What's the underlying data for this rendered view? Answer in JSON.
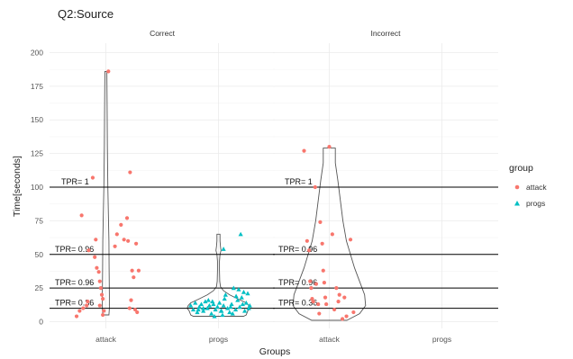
{
  "chart_data": {
    "type": "scatter",
    "title": "Q2:Source",
    "xlabel": "Groups",
    "ylabel": "Time[seconds]",
    "ylim": [
      -5,
      207
    ],
    "yticks": [
      0,
      25,
      50,
      75,
      100,
      125,
      150,
      175,
      200
    ],
    "categories": [
      "attack",
      "progs"
    ],
    "facets": [
      "Correct",
      "Incorrect"
    ],
    "grid": true,
    "legend": {
      "title": "group",
      "position": "right",
      "entries": [
        {
          "label": "attack",
          "color": "#F8766D",
          "shape": "circle"
        },
        {
          "label": "progs",
          "color": "#00BFC4",
          "shape": "triangle"
        }
      ]
    },
    "thresholds": [
      {
        "y": 100,
        "label": "TPR=  1"
      },
      {
        "y": 50,
        "label": "TPR= 0.96"
      },
      {
        "y": 25,
        "label": "TPR= 0.96"
      },
      {
        "y": 10,
        "label": "TPR= 0.36"
      }
    ],
    "series": [
      {
        "name": "attack",
        "facet": "Correct",
        "category": "attack",
        "points": [
          [
            -0.58,
            4
          ],
          [
            -0.52,
            8
          ],
          [
            -0.45,
            10
          ],
          [
            -0.38,
            12
          ],
          [
            -0.36,
            15
          ],
          [
            -0.48,
            79
          ],
          [
            -0.34,
            53
          ],
          [
            -0.26,
            107
          ],
          [
            -0.2,
            61
          ],
          [
            -0.22,
            48
          ],
          [
            -0.18,
            40
          ],
          [
            -0.14,
            37
          ],
          [
            -0.12,
            30
          ],
          [
            -0.1,
            25
          ],
          [
            -0.08,
            20
          ],
          [
            -0.06,
            17
          ],
          [
            -0.12,
            12
          ],
          [
            -0.04,
            8
          ],
          [
            -0.06,
            5
          ],
          [
            0.05,
            186
          ],
          [
            0.18,
            56
          ],
          [
            0.22,
            65
          ],
          [
            0.3,
            72
          ],
          [
            0.36,
            61
          ],
          [
            0.42,
            77
          ],
          [
            0.44,
            60
          ],
          [
            0.48,
            111
          ],
          [
            0.52,
            38
          ],
          [
            0.55,
            33
          ],
          [
            0.6,
            58
          ],
          [
            0.65,
            38
          ],
          [
            0.5,
            16
          ],
          [
            0.47,
            10
          ],
          [
            0.58,
            9
          ],
          [
            0.62,
            7
          ]
        ]
      },
      {
        "name": "progs",
        "facet": "Correct",
        "category": "progs",
        "points": [
          [
            -0.55,
            12
          ],
          [
            -0.5,
            9
          ],
          [
            -0.46,
            14
          ],
          [
            -0.42,
            7
          ],
          [
            -0.38,
            11
          ],
          [
            -0.34,
            13
          ],
          [
            -0.3,
            8
          ],
          [
            -0.26,
            15
          ],
          [
            -0.22,
            10
          ],
          [
            -0.18,
            12
          ],
          [
            -0.14,
            6
          ],
          [
            -0.1,
            13
          ],
          [
            -0.06,
            9
          ],
          [
            -0.02,
            11
          ],
          [
            0.02,
            14
          ],
          [
            0.06,
            8
          ],
          [
            0.1,
            12
          ],
          [
            0.14,
            20
          ],
          [
            0.18,
            10
          ],
          [
            0.22,
            7
          ],
          [
            0.26,
            13
          ],
          [
            0.3,
            25
          ],
          [
            0.34,
            9
          ],
          [
            0.38,
            16
          ],
          [
            0.42,
            11
          ],
          [
            0.46,
            18
          ],
          [
            0.5,
            22
          ],
          [
            0.52,
            8
          ],
          [
            0.55,
            14
          ],
          [
            0.58,
            21
          ],
          [
            0.6,
            10
          ],
          [
            0.62,
            12
          ],
          [
            0.4,
            24
          ],
          [
            0.35,
            19
          ],
          [
            -0.2,
            16
          ],
          [
            0.08,
            5
          ],
          [
            0.28,
            6
          ],
          [
            -0.08,
            4
          ],
          [
            0.12,
            17
          ],
          [
            -0.3,
            10
          ],
          [
            0.24,
            11
          ],
          [
            0.44,
            65
          ],
          [
            0.1,
            54
          ],
          [
            0.05,
            8
          ],
          [
            -0.4,
            9
          ],
          [
            0.48,
            13
          ],
          [
            -0.12,
            15
          ]
        ]
      },
      {
        "name": "attack",
        "facet": "Incorrect",
        "category": "attack",
        "points": [
          [
            -0.5,
            127
          ],
          [
            -0.44,
            60
          ],
          [
            -0.4,
            53
          ],
          [
            -0.38,
            30
          ],
          [
            -0.36,
            25
          ],
          [
            -0.34,
            17
          ],
          [
            -0.32,
            15
          ],
          [
            -0.28,
            100
          ],
          [
            -0.26,
            28
          ],
          [
            -0.22,
            13
          ],
          [
            -0.18,
            74
          ],
          [
            -0.14,
            58
          ],
          [
            -0.12,
            38
          ],
          [
            -0.1,
            29
          ],
          [
            -0.08,
            18
          ],
          [
            -0.06,
            13
          ],
          [
            0,
            130
          ],
          [
            0.06,
            65
          ],
          [
            0.1,
            9
          ],
          [
            0.14,
            25
          ],
          [
            0.18,
            15
          ],
          [
            -0.2,
            6
          ],
          [
            0.3,
            18
          ],
          [
            0.26,
            2
          ],
          [
            0.42,
            61
          ],
          [
            0.48,
            7
          ],
          [
            0.2,
            20
          ],
          [
            0.34,
            4
          ]
        ]
      }
    ],
    "violins": [
      {
        "facet": "Correct",
        "category": "attack",
        "profile": [
          [
            5,
            0.06
          ],
          [
            10,
            0.07
          ],
          [
            20,
            0.07
          ],
          [
            40,
            0.065
          ],
          [
            60,
            0.06
          ],
          [
            80,
            0.05
          ],
          [
            100,
            0.04
          ],
          [
            130,
            0.03
          ],
          [
            160,
            0.025
          ],
          [
            186,
            0.02
          ]
        ]
      },
      {
        "facet": "Correct",
        "category": "progs",
        "profile": [
          [
            4,
            0.5
          ],
          [
            5,
            0.55
          ],
          [
            8,
            0.58
          ],
          [
            10,
            0.62
          ],
          [
            12,
            0.6
          ],
          [
            14,
            0.55
          ],
          [
            17,
            0.38
          ],
          [
            20,
            0.22
          ],
          [
            23,
            0.1
          ],
          [
            26,
            0.04
          ],
          [
            30,
            0.025
          ],
          [
            38,
            0.02
          ],
          [
            45,
            0.02
          ],
          [
            50,
            0.03
          ],
          [
            53,
            0.05
          ],
          [
            56,
            0.04
          ],
          [
            60,
            0.03
          ],
          [
            65,
            0.03
          ]
        ]
      },
      {
        "facet": "Incorrect",
        "category": "attack",
        "profile": [
          [
            1,
            0.35
          ],
          [
            6,
            0.6
          ],
          [
            12,
            0.72
          ],
          [
            20,
            0.7
          ],
          [
            30,
            0.6
          ],
          [
            40,
            0.5
          ],
          [
            50,
            0.42
          ],
          [
            60,
            0.34
          ],
          [
            75,
            0.27
          ],
          [
            90,
            0.22
          ],
          [
            105,
            0.17
          ],
          [
            118,
            0.12
          ],
          [
            125,
            0.12
          ],
          [
            129,
            0.12
          ]
        ]
      }
    ]
  }
}
